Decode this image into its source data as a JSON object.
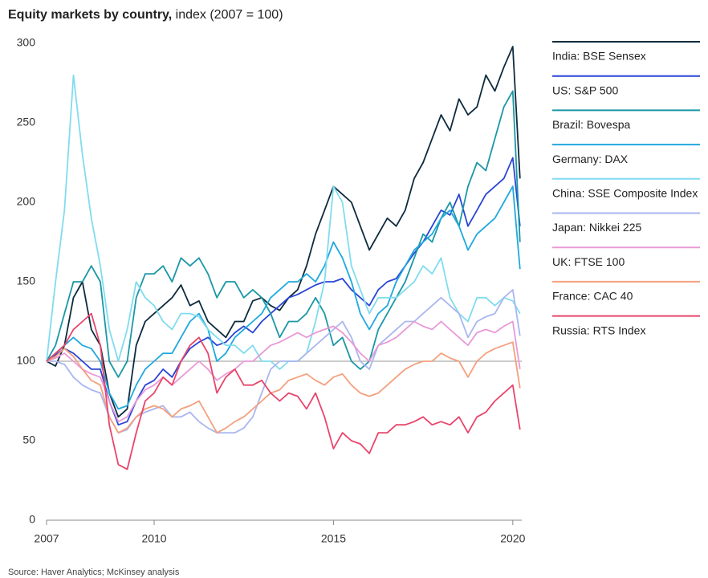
{
  "chart_data": {
    "type": "line",
    "title": "Equity markets by country,",
    "subtitle": "index (2007 = 100)",
    "source": "Source: Haver Analytics; McKinsey analysis",
    "x": [
      2007,
      2007.25,
      2007.5,
      2007.75,
      2008,
      2008.25,
      2008.5,
      2008.75,
      2009,
      2009.25,
      2009.5,
      2009.75,
      2010,
      2010.25,
      2010.5,
      2010.75,
      2011,
      2011.25,
      2011.5,
      2011.75,
      2012,
      2012.25,
      2012.5,
      2012.75,
      2013,
      2013.25,
      2013.5,
      2013.75,
      2014,
      2014.25,
      2014.5,
      2014.75,
      2015,
      2015.25,
      2015.5,
      2015.75,
      2016,
      2016.25,
      2016.5,
      2016.75,
      2017,
      2017.25,
      2017.5,
      2017.75,
      2018,
      2018.25,
      2018.5,
      2018.75,
      2019,
      2019.25,
      2019.5,
      2019.75,
      2020,
      2020.2
    ],
    "xlim": [
      2007,
      2020.25
    ],
    "xticks": [
      2007,
      2010,
      2015,
      2020
    ],
    "ylim": [
      0,
      300
    ],
    "yticks": [
      0,
      50,
      100,
      150,
      200,
      250,
      300
    ],
    "reference_line": 100,
    "legend_position": "right",
    "series": [
      {
        "name": "India: BSE Sensex",
        "color": "#0d2b3e",
        "values": [
          100,
          97,
          110,
          140,
          150,
          120,
          110,
          80,
          65,
          70,
          110,
          125,
          130,
          135,
          140,
          148,
          135,
          138,
          125,
          120,
          115,
          125,
          125,
          138,
          140,
          135,
          132,
          140,
          145,
          160,
          180,
          195,
          210,
          205,
          200,
          185,
          170,
          180,
          190,
          185,
          195,
          215,
          225,
          240,
          255,
          245,
          265,
          255,
          260,
          280,
          270,
          285,
          298,
          215
        ]
      },
      {
        "name": "US: S&P 500",
        "color": "#2a45d6",
        "values": [
          100,
          104,
          108,
          105,
          100,
          95,
          95,
          75,
          60,
          62,
          75,
          85,
          88,
          95,
          90,
          100,
          108,
          112,
          115,
          110,
          112,
          118,
          122,
          118,
          125,
          130,
          135,
          140,
          142,
          145,
          148,
          150,
          150,
          152,
          145,
          140,
          135,
          145,
          150,
          152,
          160,
          168,
          175,
          185,
          195,
          192,
          205,
          185,
          195,
          205,
          210,
          215,
          228,
          185
        ]
      },
      {
        "name": "Brazil: Bovespa",
        "color": "#1b97a6",
        "values": [
          100,
          110,
          130,
          150,
          150,
          160,
          150,
          100,
          90,
          100,
          140,
          155,
          155,
          160,
          150,
          165,
          160,
          165,
          155,
          140,
          150,
          150,
          140,
          145,
          140,
          130,
          115,
          125,
          125,
          130,
          140,
          130,
          110,
          115,
          100,
          95,
          100,
          120,
          130,
          140,
          150,
          165,
          180,
          175,
          190,
          200,
          185,
          210,
          225,
          220,
          240,
          260,
          270,
          175
        ]
      },
      {
        "name": "Germany: DAX",
        "color": "#1fa9de",
        "values": [
          100,
          105,
          110,
          115,
          110,
          108,
          100,
          80,
          70,
          72,
          85,
          95,
          100,
          105,
          105,
          115,
          125,
          130,
          120,
          100,
          105,
          115,
          120,
          125,
          130,
          140,
          145,
          150,
          150,
          155,
          150,
          160,
          175,
          165,
          150,
          130,
          120,
          130,
          135,
          150,
          160,
          170,
          175,
          180,
          190,
          195,
          185,
          170,
          180,
          185,
          190,
          200,
          210,
          158
        ]
      },
      {
        "name": "China: SSE Composite Index",
        "color": "#80dcef",
        "values": [
          100,
          150,
          195,
          280,
          230,
          190,
          160,
          120,
          100,
          120,
          150,
          140,
          135,
          125,
          120,
          130,
          130,
          128,
          120,
          115,
          110,
          110,
          105,
          110,
          100,
          100,
          95,
          100,
          100,
          105,
          125,
          150,
          210,
          200,
          160,
          145,
          130,
          140,
          140,
          140,
          145,
          150,
          160,
          155,
          165,
          140,
          130,
          125,
          140,
          140,
          135,
          140,
          138,
          130
        ]
      },
      {
        "name": "Japan: Nikkei 225",
        "color": "#aab6f0",
        "values": [
          100,
          100,
          98,
          90,
          85,
          82,
          80,
          65,
          55,
          57,
          65,
          68,
          70,
          72,
          65,
          65,
          68,
          62,
          58,
          55,
          55,
          55,
          58,
          65,
          80,
          95,
          100,
          100,
          100,
          105,
          110,
          115,
          120,
          125,
          115,
          100,
          95,
          110,
          115,
          120,
          125,
          125,
          130,
          135,
          140,
          135,
          130,
          115,
          125,
          128,
          130,
          140,
          145,
          116
        ]
      },
      {
        "name": "UK: FTSE 100",
        "color": "#e89ad6",
        "values": [
          100,
          102,
          105,
          100,
          95,
          92,
          90,
          75,
          62,
          65,
          75,
          82,
          85,
          90,
          85,
          90,
          95,
          100,
          95,
          88,
          92,
          95,
          100,
          100,
          105,
          110,
          112,
          115,
          118,
          115,
          118,
          120,
          122,
          118,
          112,
          105,
          100,
          110,
          112,
          115,
          120,
          125,
          122,
          120,
          125,
          120,
          115,
          110,
          118,
          120,
          118,
          122,
          125,
          95
        ]
      },
      {
        "name": "France: CAC 40",
        "color": "#f4a07e",
        "values": [
          100,
          103,
          108,
          103,
          95,
          88,
          85,
          65,
          55,
          58,
          65,
          70,
          72,
          70,
          65,
          70,
          72,
          75,
          65,
          55,
          58,
          62,
          65,
          70,
          75,
          80,
          82,
          88,
          90,
          92,
          88,
          85,
          90,
          92,
          85,
          80,
          78,
          80,
          85,
          90,
          95,
          98,
          100,
          100,
          105,
          102,
          100,
          90,
          100,
          105,
          108,
          110,
          112,
          83
        ]
      },
      {
        "name": "Russia: RTS Index",
        "color": "#e8456b",
        "values": [
          100,
          105,
          110,
          120,
          125,
          130,
          110,
          60,
          35,
          32,
          55,
          75,
          80,
          90,
          85,
          100,
          110,
          115,
          105,
          80,
          90,
          95,
          85,
          85,
          88,
          80,
          75,
          80,
          78,
          70,
          80,
          65,
          45,
          55,
          50,
          48,
          42,
          55,
          55,
          60,
          60,
          62,
          65,
          60,
          62,
          60,
          65,
          55,
          65,
          68,
          75,
          80,
          85,
          57
        ]
      }
    ]
  }
}
